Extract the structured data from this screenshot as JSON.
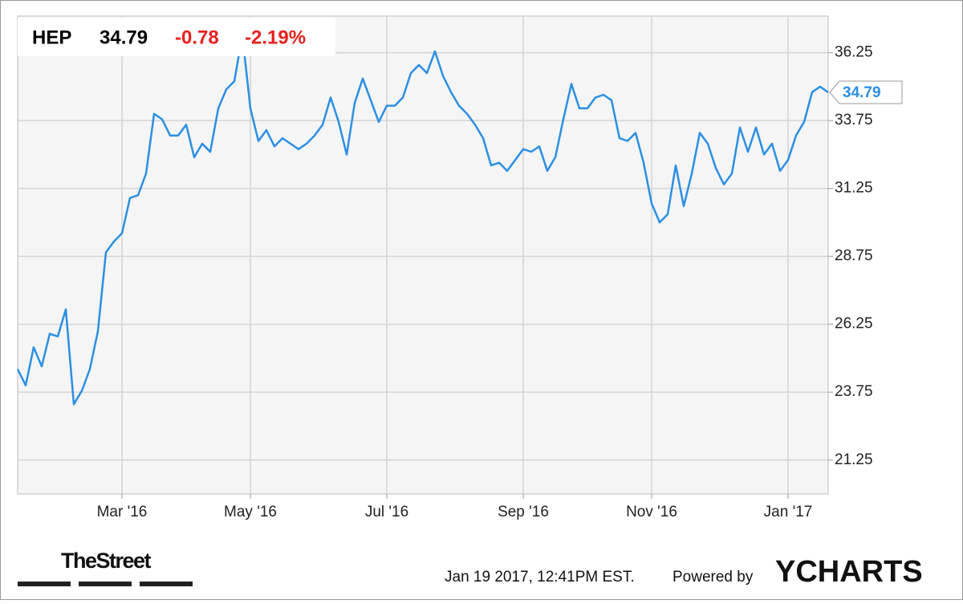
{
  "chart_data": {
    "type": "line",
    "ticker": "HEP",
    "price": 34.79,
    "change": -0.78,
    "change_percent": "-2.19%",
    "categories": [
      null,
      null,
      null,
      null,
      null,
      null,
      null,
      null,
      null,
      null,
      null,
      null,
      null,
      "Mar '16",
      null,
      null,
      null,
      null,
      null,
      null,
      null,
      null,
      null,
      null,
      null,
      null,
      null,
      null,
      null,
      "May '16",
      null,
      null,
      null,
      null,
      null,
      null,
      null,
      null,
      null,
      null,
      null,
      null,
      null,
      null,
      null,
      null,
      "Jul '16",
      null,
      null,
      null,
      null,
      null,
      null,
      null,
      null,
      null,
      null,
      null,
      null,
      null,
      null,
      null,
      null,
      "Sep '16",
      null,
      null,
      null,
      null,
      null,
      null,
      null,
      null,
      null,
      null,
      null,
      null,
      null,
      null,
      null,
      "Nov '16",
      null,
      null,
      null,
      null,
      null,
      null,
      null,
      null,
      null,
      null,
      null,
      null,
      null,
      null,
      null,
      null,
      "Jan '17",
      null,
      null,
      null,
      null,
      null
    ],
    "series": [
      {
        "name": "HEP",
        "color": "#2b8fe3",
        "values": [
          24.6,
          24.0,
          25.4,
          24.7,
          25.9,
          25.8,
          26.8,
          23.3,
          23.8,
          24.6,
          26.0,
          28.9,
          29.3,
          29.6,
          30.9,
          31.0,
          31.8,
          34.0,
          33.8,
          33.2,
          33.2,
          33.6,
          32.4,
          32.9,
          32.6,
          34.2,
          34.9,
          35.2,
          36.9,
          34.2,
          33.0,
          33.4,
          32.8,
          33.1,
          32.9,
          32.7,
          32.9,
          33.2,
          33.6,
          34.6,
          33.7,
          32.5,
          34.4,
          35.3,
          34.5,
          33.7,
          34.3,
          34.3,
          34.6,
          35.5,
          35.8,
          35.5,
          36.3,
          35.4,
          34.8,
          34.3,
          34.0,
          33.6,
          33.1,
          32.1,
          32.2,
          31.9,
          32.3,
          32.7,
          32.6,
          32.8,
          31.9,
          32.4,
          33.8,
          35.1,
          34.2,
          34.2,
          34.6,
          34.7,
          34.5,
          33.1,
          33.0,
          33.3,
          32.2,
          30.7,
          30.0,
          30.3,
          32.1,
          30.6,
          31.8,
          33.3,
          32.9,
          32.0,
          31.4,
          31.8,
          33.5,
          32.6,
          33.5,
          32.5,
          32.9,
          31.9,
          32.3,
          33.2,
          33.7,
          34.8,
          35.0,
          34.79
        ]
      }
    ],
    "ylim": [
      20,
      37.6
    ],
    "yticks": [
      21.25,
      23.75,
      26.25,
      28.75,
      31.25,
      33.75,
      36.25
    ],
    "grid": true
  },
  "footer": {
    "brand": "TheStreet",
    "timestamp": "Jan 19 2017, 12:41PM EST.",
    "powered_by": "Powered by",
    "provider": "YCHARTS"
  }
}
